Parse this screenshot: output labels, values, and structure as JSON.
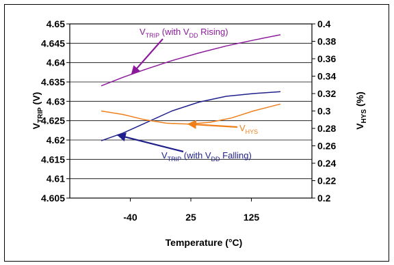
{
  "chart_data": {
    "type": "line",
    "xlabel": "Temperature (°C)",
    "ylabel_left": {
      "main": "V",
      "sub": "TRIP",
      "tail": " (V)"
    },
    "ylabel_right": {
      "main": "V",
      "sub": "HYS",
      "tail": " (%)"
    },
    "x_categories": [
      "-40",
      "25",
      "125"
    ],
    "x_range": [
      -40,
      125
    ],
    "y_left": {
      "range": [
        4.605,
        4.65
      ],
      "ticks": [
        "4.65",
        "4.645",
        "4.64",
        "4.635",
        "4.63",
        "4.625",
        "4.62",
        "4.615",
        "4.61",
        "4.605"
      ]
    },
    "y_right": {
      "range": [
        0.2,
        0.4
      ],
      "ticks": [
        "0.4",
        "0.38",
        "0.36",
        "0.34",
        "0.32",
        "0.3",
        "0.28",
        "0.26",
        "0.24",
        "0.22",
        "0.2"
      ]
    },
    "grid": "horizontal",
    "series": [
      {
        "id": "rising",
        "axis": "left",
        "color": "#8B1A9A",
        "x": [
          -40,
          -20,
          0,
          25,
          50,
          75,
          100,
          125
        ],
        "y": [
          4.634,
          4.6362,
          4.6382,
          4.6405,
          4.6425,
          4.6443,
          4.6458,
          4.6472
        ]
      },
      {
        "id": "falling",
        "axis": "left",
        "color": "#1F1F8C",
        "x": [
          -40,
          -20,
          0,
          25,
          50,
          75,
          100,
          125
        ],
        "y": [
          4.6198,
          4.6218,
          4.6243,
          4.6275,
          4.6298,
          4.6313,
          4.632,
          4.6325
        ]
      },
      {
        "id": "hys",
        "axis": "right",
        "color": "#F07F1A",
        "x": [
          -40,
          -20,
          0,
          20,
          40,
          60,
          80,
          100,
          125
        ],
        "y": [
          0.3,
          0.296,
          0.29,
          0.286,
          0.285,
          0.287,
          0.292,
          0.3,
          0.308
        ]
      }
    ],
    "annotations": [
      {
        "id": "rising",
        "main": "V",
        "sub": "TRIP",
        "pre": " (with V",
        "sub2": "DD",
        "post": " Rising)",
        "color": "#8B1A9A"
      },
      {
        "id": "falling",
        "main": "V",
        "sub": "TRIP",
        "pre": " (with V",
        "sub2": "DD",
        "post": " Falling)",
        "color": "#1F1F8C"
      },
      {
        "id": "hys",
        "main": "V",
        "sub": "HYS",
        "pre": "",
        "sub2": "",
        "post": "",
        "color": "#F07F1A"
      }
    ]
  }
}
